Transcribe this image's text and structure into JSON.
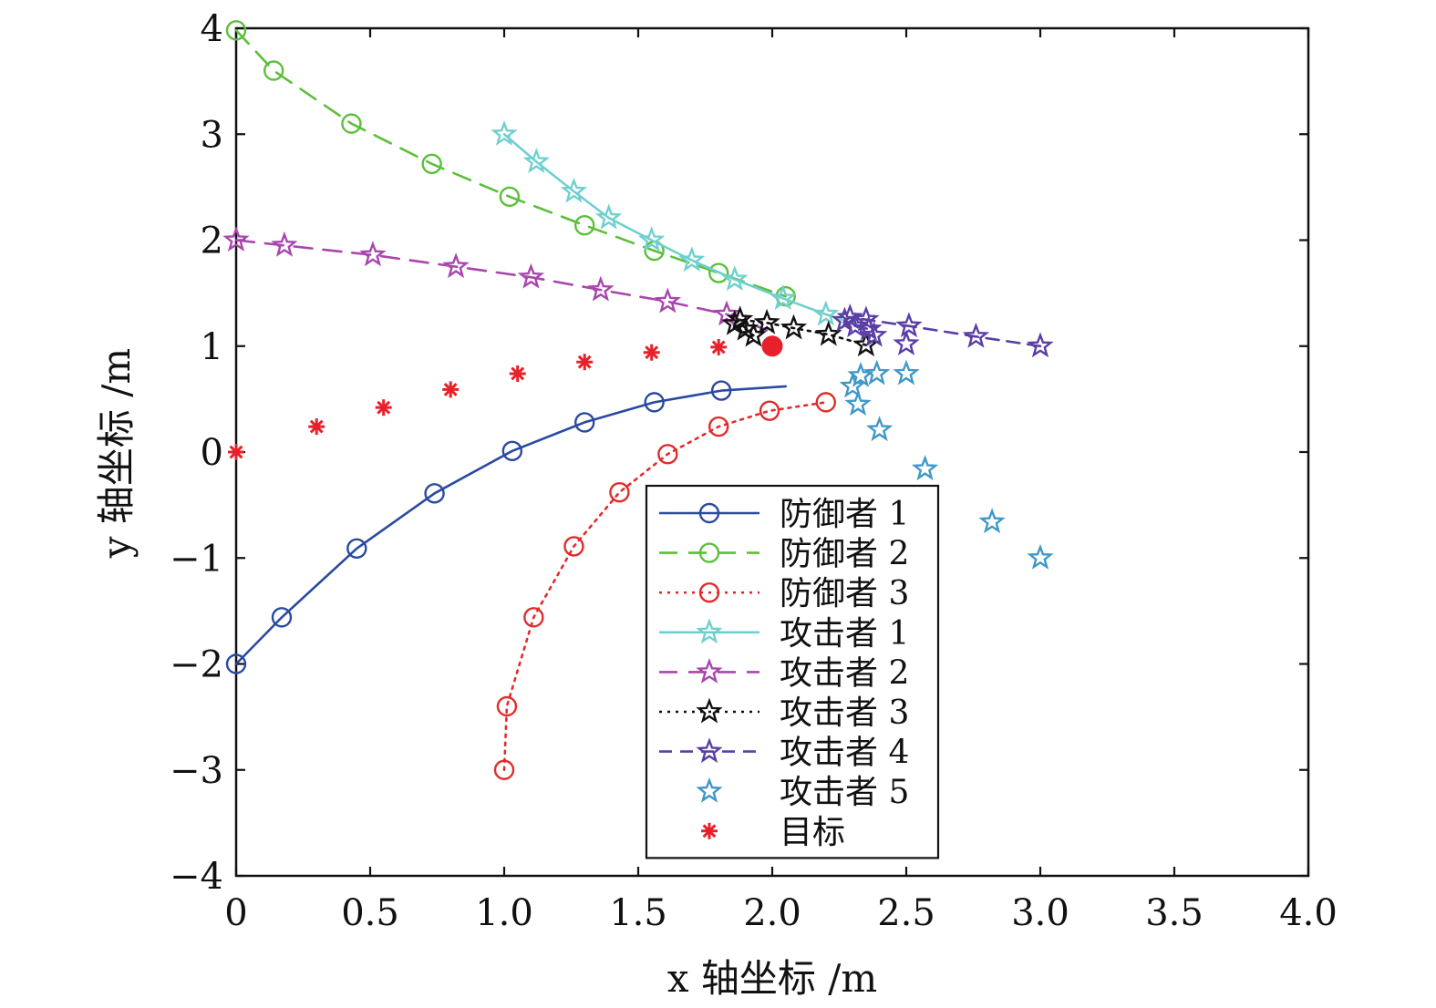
{
  "chart_data": {
    "type": "line",
    "title": "",
    "xlabel": "x 轴坐标 /m",
    "ylabel": "y 轴坐标 /m",
    "xlim": [
      0,
      4
    ],
    "ylim": [
      -4,
      4
    ],
    "grid": false,
    "legend_position": "lower-center",
    "x_ticks": [
      0,
      0.5,
      1.0,
      1.5,
      2.0,
      2.5,
      3.0,
      3.5,
      4.0
    ],
    "x_tick_labels": [
      "0",
      "0.5",
      "1.0",
      "1.5",
      "2.0",
      "2.5",
      "3.0",
      "3.5",
      "4.0"
    ],
    "y_ticks": [
      -4,
      -3,
      -2,
      -1,
      0,
      1,
      2,
      3,
      4
    ],
    "y_tick_labels": [
      "−4",
      "−3",
      "−2",
      "−1",
      "0",
      "1",
      "2",
      "3",
      "4"
    ],
    "target_point": {
      "x": 2.0,
      "y": 1.0,
      "color": "#e8202a"
    },
    "series": [
      {
        "name": "防御者 1",
        "color": "#2a4aa0",
        "dash": "solid",
        "marker": "circle",
        "line": [
          [
            0,
            -2
          ],
          [
            0.17,
            -1.56
          ],
          [
            0.45,
            -0.91
          ],
          [
            0.74,
            -0.39
          ],
          [
            1.03,
            0.01
          ],
          [
            1.3,
            0.28
          ],
          [
            1.56,
            0.47
          ],
          [
            1.81,
            0.58
          ],
          [
            2.05,
            0.62
          ]
        ],
        "markers": [
          [
            0,
            -2
          ],
          [
            0.17,
            -1.56
          ],
          [
            0.45,
            -0.91
          ],
          [
            0.74,
            -0.39
          ],
          [
            1.03,
            0.01
          ],
          [
            1.3,
            0.28
          ],
          [
            1.56,
            0.47
          ],
          [
            1.81,
            0.58
          ]
        ]
      },
      {
        "name": "防御者 2",
        "color": "#5cbf3b",
        "dash": "long",
        "marker": "circle",
        "line": [
          [
            0,
            3.98
          ],
          [
            0.14,
            3.6
          ],
          [
            0.43,
            3.1
          ],
          [
            0.73,
            2.72
          ],
          [
            1.02,
            2.41
          ],
          [
            1.3,
            2.14
          ],
          [
            1.56,
            1.9
          ],
          [
            1.8,
            1.69
          ],
          [
            2.05,
            1.47
          ]
        ],
        "markers": [
          [
            0,
            3.98
          ],
          [
            0.14,
            3.6
          ],
          [
            0.43,
            3.1
          ],
          [
            0.73,
            2.72
          ],
          [
            1.02,
            2.41
          ],
          [
            1.3,
            2.14
          ],
          [
            1.56,
            1.9
          ],
          [
            1.8,
            1.69
          ],
          [
            2.05,
            1.47
          ]
        ]
      },
      {
        "name": "防御者 3",
        "color": "#e32b2b",
        "dash": "dot",
        "marker": "circle",
        "line": [
          [
            1.0,
            -3.0
          ],
          [
            1.01,
            -2.4
          ],
          [
            1.11,
            -1.56
          ],
          [
            1.26,
            -0.89
          ],
          [
            1.43,
            -0.38
          ],
          [
            1.61,
            -0.02
          ],
          [
            1.8,
            0.24
          ],
          [
            1.99,
            0.39
          ],
          [
            2.2,
            0.47
          ]
        ],
        "markers": [
          [
            1.0,
            -3.0
          ],
          [
            1.01,
            -2.4
          ],
          [
            1.11,
            -1.56
          ],
          [
            1.26,
            -0.89
          ],
          [
            1.43,
            -0.38
          ],
          [
            1.61,
            -0.02
          ],
          [
            1.8,
            0.24
          ],
          [
            1.99,
            0.39
          ],
          [
            2.2,
            0.47
          ]
        ]
      },
      {
        "name": "攻击者 1",
        "color": "#6fd0cf",
        "dash": "solid",
        "marker": "star",
        "line": [
          [
            1.0,
            3.0
          ],
          [
            1.12,
            2.74
          ],
          [
            1.26,
            2.46
          ],
          [
            1.39,
            2.21
          ],
          [
            1.55,
            2.0
          ],
          [
            1.7,
            1.81
          ],
          [
            1.86,
            1.63
          ],
          [
            2.04,
            1.45
          ],
          [
            2.2,
            1.3
          ],
          [
            2.32,
            1.2
          ]
        ],
        "markers": [
          [
            1.0,
            3.0
          ],
          [
            1.12,
            2.74
          ],
          [
            1.26,
            2.46
          ],
          [
            1.39,
            2.21
          ],
          [
            1.55,
            2.0
          ],
          [
            1.7,
            1.81
          ],
          [
            1.86,
            1.63
          ],
          [
            2.04,
            1.45
          ],
          [
            2.2,
            1.3
          ]
        ]
      },
      {
        "name": "攻击者 2",
        "color": "#a946ad",
        "dash": "long",
        "marker": "star",
        "line": [
          [
            0,
            2.0
          ],
          [
            0.18,
            1.95
          ],
          [
            0.51,
            1.86
          ],
          [
            0.82,
            1.75
          ],
          [
            1.1,
            1.65
          ],
          [
            1.36,
            1.53
          ],
          [
            1.61,
            1.42
          ],
          [
            1.83,
            1.3
          ],
          [
            1.93,
            1.2
          ],
          [
            1.98,
            1.15
          ]
        ],
        "markers": [
          [
            0,
            2.0
          ],
          [
            0.18,
            1.95
          ],
          [
            0.51,
            1.86
          ],
          [
            0.82,
            1.75
          ],
          [
            1.1,
            1.65
          ],
          [
            1.36,
            1.53
          ],
          [
            1.61,
            1.42
          ],
          [
            1.83,
            1.3
          ]
        ]
      },
      {
        "name": "攻击者 3",
        "color": "#111111",
        "dash": "dot",
        "marker": "star",
        "line": [
          [
            2.35,
            1.01
          ],
          [
            2.21,
            1.11
          ],
          [
            2.08,
            1.17
          ],
          [
            1.98,
            1.22
          ],
          [
            1.88,
            1.25
          ],
          [
            1.86,
            1.21
          ],
          [
            1.9,
            1.16
          ],
          [
            1.93,
            1.1
          ]
        ],
        "markers": [
          [
            2.35,
            1.01
          ],
          [
            2.21,
            1.11
          ],
          [
            2.08,
            1.17
          ],
          [
            1.98,
            1.22
          ],
          [
            1.88,
            1.25
          ],
          [
            1.86,
            1.21
          ],
          [
            1.9,
            1.16
          ],
          [
            1.93,
            1.1
          ]
        ]
      },
      {
        "name": "攻击者 4",
        "color": "#5a3ea6",
        "dash": "dash",
        "marker": "star",
        "line": [
          [
            3.0,
            1.0
          ],
          [
            2.76,
            1.09
          ],
          [
            2.51,
            1.19
          ],
          [
            2.35,
            1.25
          ],
          [
            2.29,
            1.27
          ],
          [
            2.27,
            1.24
          ],
          [
            2.31,
            1.19
          ],
          [
            2.36,
            1.16
          ],
          [
            2.38,
            1.1
          ]
        ],
        "markers": [
          [
            3.0,
            1.0
          ],
          [
            2.76,
            1.09
          ],
          [
            2.51,
            1.19
          ],
          [
            2.5,
            1.02
          ],
          [
            2.35,
            1.25
          ],
          [
            2.29,
            1.27
          ],
          [
            2.27,
            1.24
          ],
          [
            2.31,
            1.19
          ],
          [
            2.36,
            1.16
          ],
          [
            2.38,
            1.1
          ]
        ]
      },
      {
        "name": "攻击者 5",
        "color": "#3f98c8",
        "dash": "none",
        "marker": "star",
        "line": [],
        "markers": [
          [
            3.0,
            -1.0
          ],
          [
            2.82,
            -0.66
          ],
          [
            2.57,
            -0.16
          ],
          [
            2.4,
            0.21
          ],
          [
            2.32,
            0.45
          ],
          [
            2.3,
            0.62
          ],
          [
            2.33,
            0.72
          ],
          [
            2.39,
            0.74
          ],
          [
            2.5,
            0.74
          ]
        ]
      },
      {
        "name": "目标",
        "color": "#e8202a",
        "dash": "none",
        "marker": "asterisk",
        "line": [],
        "markers": [
          [
            0,
            0
          ],
          [
            0.3,
            0.24
          ],
          [
            0.55,
            0.42
          ],
          [
            0.8,
            0.59
          ],
          [
            1.05,
            0.74
          ],
          [
            1.3,
            0.85
          ],
          [
            1.55,
            0.94
          ],
          [
            1.8,
            0.99
          ]
        ]
      }
    ]
  }
}
